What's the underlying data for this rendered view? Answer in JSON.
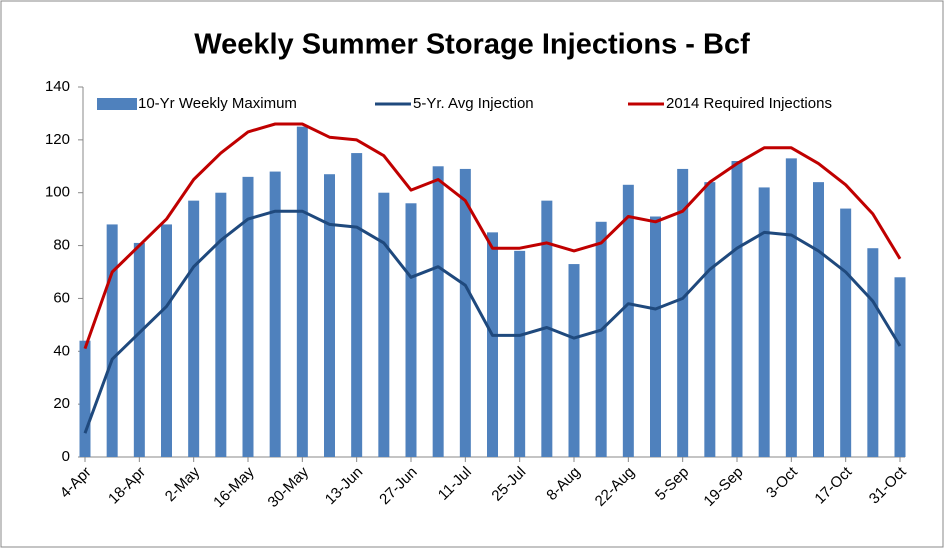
{
  "chart_data": {
    "type": "bar",
    "title": "Weekly Summer Storage Injections - Bcf",
    "categories": [
      "4-Apr",
      null,
      "18-Apr",
      null,
      "2-May",
      null,
      "16-May",
      null,
      "30-May",
      null,
      "13-Jun",
      null,
      "27-Jun",
      null,
      "11-Jul",
      null,
      "25-Jul",
      null,
      "8-Aug",
      null,
      "22-Aug",
      null,
      "5-Sep",
      null,
      "19-Sep",
      null,
      "3-Oct",
      null,
      "17-Oct",
      null,
      "31-Oct"
    ],
    "series": [
      {
        "name": "10-Yr Weekly Maximum",
        "type": "bar",
        "color": "#4f81bd",
        "values": [
          44,
          88,
          81,
          88,
          97,
          100,
          106,
          108,
          125,
          107,
          115,
          100,
          96,
          110,
          109,
          85,
          78,
          97,
          73,
          89,
          103,
          91,
          109,
          104,
          112,
          102,
          113,
          104,
          94,
          79,
          68
        ]
      },
      {
        "name": "5-Yr. Avg Injection",
        "type": "line",
        "color": "#1f497d",
        "values": [
          9,
          37,
          47,
          57,
          72,
          82,
          90,
          93,
          93,
          88,
          87,
          81,
          68,
          72,
          65,
          46,
          46,
          49,
          45,
          48,
          58,
          56,
          60,
          71,
          79,
          85,
          84,
          78,
          70,
          59,
          42
        ]
      },
      {
        "name": "2014 Required Injections",
        "type": "line",
        "color": "#c00000",
        "values": [
          41,
          70,
          80,
          90,
          105,
          115,
          123,
          126,
          126,
          121,
          120,
          114,
          101,
          105,
          97,
          79,
          79,
          81,
          78,
          81,
          91,
          89,
          93,
          104,
          111,
          117,
          117,
          111,
          103,
          92,
          75
        ]
      }
    ],
    "ylim": [
      0,
      140
    ],
    "yticks": [
      0,
      20,
      40,
      60,
      80,
      100,
      120,
      140
    ],
    "grid": false,
    "legend": "top"
  }
}
